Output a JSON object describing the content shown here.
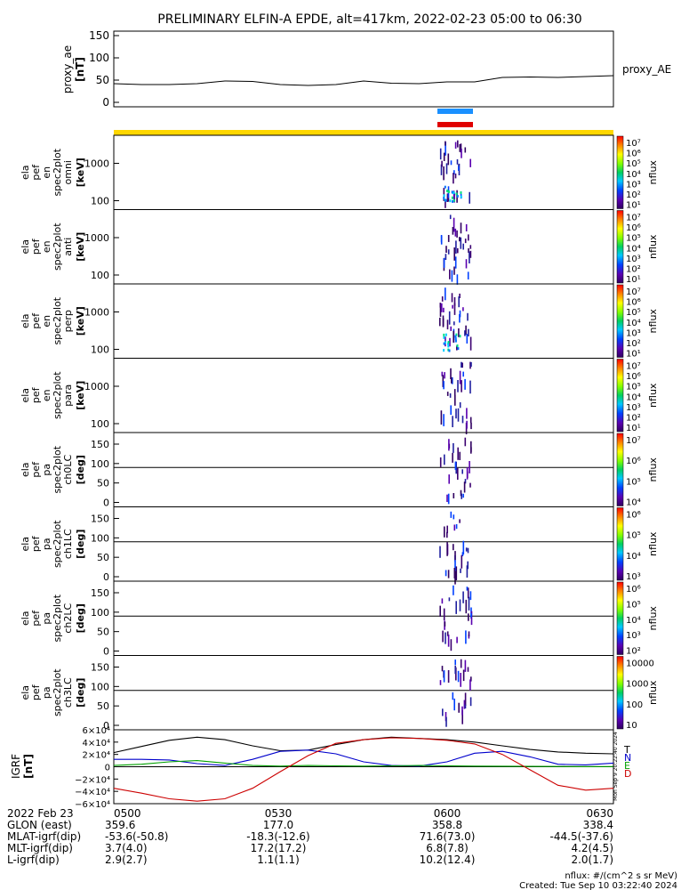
{
  "title": "PRELIMINARY ELFIN-A EPDE, alt=417km, 2022-02-23 05:00 to 06:30",
  "chart_data": [
    {
      "type": "line",
      "ylabel": "proxy_ae",
      "yunit": "[nT]",
      "legend": "proxy_AE",
      "ylim": [
        -10,
        160
      ],
      "yticks": [
        "0",
        "50",
        "100",
        "150"
      ],
      "x_minutes": [
        0,
        5,
        10,
        15,
        20,
        25,
        30,
        35,
        40,
        45,
        50,
        55,
        60,
        65,
        70,
        75,
        80,
        85,
        90
      ],
      "values": [
        42,
        40,
        40,
        42,
        48,
        47,
        40,
        38,
        40,
        48,
        43,
        42,
        46,
        46,
        56,
        57,
        56,
        58,
        60
      ]
    },
    {
      "type": "heatmap",
      "panels": [
        {
          "label": [
            "ela",
            "pef",
            "en",
            "spec2plot",
            "omni"
          ],
          "unit": "[keV]",
          "yticks": [
            "100",
            "1000"
          ],
          "cbar": [
            "10⁷",
            "10⁶",
            "10⁵",
            "10⁴",
            "10³",
            "10²",
            "10¹"
          ],
          "cbar_label": "nflux"
        },
        {
          "label": [
            "ela",
            "pef",
            "en",
            "spec2plot",
            "anti"
          ],
          "unit": "[keV]",
          "yticks": [
            "100",
            "1000"
          ],
          "cbar": [
            "10⁷",
            "10⁶",
            "10⁵",
            "10⁴",
            "10³",
            "10²",
            "10¹"
          ],
          "cbar_label": "nflux"
        },
        {
          "label": [
            "ela",
            "pef",
            "en",
            "spec2plot",
            "perp"
          ],
          "unit": "[keV]",
          "yticks": [
            "100",
            "1000"
          ],
          "cbar": [
            "10⁷",
            "10⁶",
            "10⁵",
            "10⁴",
            "10³",
            "10²",
            "10¹"
          ],
          "cbar_label": "nflux"
        },
        {
          "label": [
            "ela",
            "pef",
            "en",
            "spec2plot",
            "para"
          ],
          "unit": "[keV]",
          "yticks": [
            "100",
            "1000"
          ],
          "cbar": [
            "10⁷",
            "10⁶",
            "10⁵",
            "10⁴",
            "10³",
            "10²",
            "10¹"
          ],
          "cbar_label": "nflux"
        },
        {
          "label": [
            "ela",
            "pef",
            "pa",
            "spec2plot",
            "ch0LC"
          ],
          "unit": "[deg]",
          "yticks": [
            "0",
            "50",
            "100",
            "150"
          ],
          "cbar": [
            "10⁷",
            "10⁶",
            "10⁵",
            "10⁴"
          ],
          "cbar_label": "nflux"
        },
        {
          "label": [
            "ela",
            "pef",
            "pa",
            "spec2plot",
            "ch1LC"
          ],
          "unit": "[deg]",
          "yticks": [
            "0",
            "50",
            "100",
            "150"
          ],
          "cbar": [
            "10⁶",
            "10⁵",
            "10⁴",
            "10³"
          ],
          "cbar_label": "nflux"
        },
        {
          "label": [
            "ela",
            "pef",
            "pa",
            "spec2plot",
            "ch2LC"
          ],
          "unit": "[deg]",
          "yticks": [
            "0",
            "50",
            "100",
            "150"
          ],
          "cbar": [
            "10⁶",
            "10⁵",
            "10⁴",
            "10³",
            "10²"
          ],
          "cbar_label": "nflux"
        },
        {
          "label": [
            "ela",
            "pef",
            "pa",
            "spec2plot",
            "ch3LC"
          ],
          "unit": "[deg]",
          "yticks": [
            "0",
            "50",
            "100",
            "150"
          ],
          "cbar": [
            "10000",
            "1000",
            "100",
            "10"
          ],
          "cbar_label": "nflux"
        }
      ]
    },
    {
      "type": "line",
      "ylabel": "IGRF",
      "yunit": "[nT]",
      "yticks": [
        "6×10⁴",
        "4×10⁴",
        "2×10⁴",
        "0",
        "−2×10⁴",
        "−4×10⁴",
        "−6×10⁴"
      ],
      "ylim": [
        -60000,
        60000
      ],
      "x_minutes": [
        0,
        5,
        10,
        15,
        20,
        25,
        30,
        35,
        40,
        45,
        50,
        55,
        60,
        65,
        70,
        75,
        80,
        85,
        90
      ],
      "series": [
        {
          "name": "T",
          "color": "#000000",
          "values": [
            23000,
            33000,
            43000,
            48000,
            44000,
            34000,
            26000,
            27000,
            36000,
            44000,
            48000,
            46000,
            44000,
            40000,
            34000,
            28000,
            24000,
            22000,
            21000
          ]
        },
        {
          "name": "N",
          "color": "#0000cc",
          "values": [
            12000,
            12000,
            11000,
            5000,
            2000,
            12000,
            25000,
            27000,
            21000,
            8000,
            2000,
            1000,
            8000,
            22000,
            25000,
            16000,
            4000,
            3000,
            6000
          ]
        },
        {
          "name": "E",
          "color": "#00a000",
          "values": [
            2000,
            4000,
            8000,
            10000,
            6000,
            2000,
            1000,
            2000,
            1500,
            1000,
            1500,
            2000,
            1500,
            1000,
            800,
            600,
            500,
            300,
            300
          ]
        },
        {
          "name": "D",
          "color": "#cc0000",
          "values": [
            -35000,
            -43000,
            -52000,
            -56000,
            -52000,
            -35000,
            -8000,
            18000,
            38000,
            44000,
            47000,
            46000,
            43000,
            37000,
            20000,
            -5000,
            -30000,
            -38000,
            -35000
          ]
        }
      ]
    }
  ],
  "stamp": "Mon Sep  9 20:22:40 2024",
  "footer": {
    "rows": [
      [
        "2022 Feb 23",
        "0500",
        "0530",
        "0600",
        "0630"
      ],
      [
        "GLON (east)",
        "359.6",
        "177.0",
        "358.8",
        "338.4"
      ],
      [
        "MLAT-igrf(dip)",
        "-53.6(-50.8)",
        "-18.3(-12.6)",
        "71.6(73.0)",
        "-44.5(-37.6)"
      ],
      [
        "MLT-igrf(dip)",
        "3.7(4.0)",
        "17.2(17.2)",
        "6.8(7.8)",
        "4.2(4.5)"
      ],
      [
        "L-igrf(dip)",
        "2.9(2.7)",
        "1.1(1.1)",
        "10.2(12.4)",
        "2.0(1.7)"
      ]
    ],
    "nflux_note": "nflux: #/(cm^2 s sr MeV)",
    "created": "Created: Tue Sep 10 03:22:40 2024"
  }
}
